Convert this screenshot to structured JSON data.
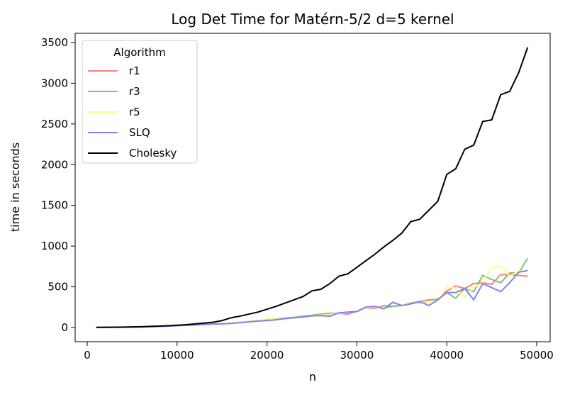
{
  "chart_data": {
    "type": "line",
    "title": "Log Det Time for Matérn-5/2 d=5 kernel",
    "xlabel": "n",
    "ylabel": "time in seconds",
    "legend_title": "Algorithm",
    "legend": "upper left",
    "x": [
      1000,
      2000,
      3000,
      4000,
      5000,
      6000,
      7000,
      8000,
      9000,
      10000,
      11000,
      12000,
      13000,
      14000,
      15000,
      16000,
      17000,
      18000,
      19000,
      20000,
      21000,
      22000,
      23000,
      24000,
      25000,
      26000,
      27000,
      28000,
      29000,
      30000,
      31000,
      32000,
      33000,
      34000,
      35000,
      36000,
      37000,
      38000,
      39000,
      40000,
      41000,
      42000,
      43000,
      44000,
      45000,
      46000,
      47000,
      48000,
      49000
    ],
    "series": [
      {
        "name": "r1",
        "color": "#f88080",
        "values": [
          0,
          1,
          2,
          3,
          5,
          7,
          10,
          14,
          18,
          22,
          27,
          32,
          38,
          44,
          50,
          55,
          65,
          75,
          85,
          95,
          100,
          110,
          120,
          130,
          140,
          150,
          160,
          175,
          165,
          200,
          240,
          235,
          270,
          260,
          275,
          300,
          320,
          340,
          345,
          450,
          510,
          480,
          540,
          550,
          530,
          650,
          650,
          640,
          630
        ]
      },
      {
        "name": "r3",
        "color": "#80c080",
        "values": [
          0,
          1,
          2,
          3,
          5,
          7,
          10,
          14,
          18,
          22,
          27,
          32,
          38,
          44,
          50,
          55,
          65,
          75,
          85,
          95,
          105,
          115,
          125,
          140,
          150,
          165,
          175,
          175,
          190,
          200,
          250,
          255,
          240,
          260,
          270,
          300,
          300,
          320,
          350,
          430,
          360,
          480,
          440,
          640,
          590,
          550,
          670,
          670,
          850
        ]
      },
      {
        "name": "r5",
        "color": "#ffff80",
        "values": [
          0,
          1,
          2,
          3,
          5,
          7,
          10,
          14,
          18,
          22,
          27,
          32,
          38,
          44,
          50,
          55,
          65,
          75,
          85,
          110,
          100,
          110,
          120,
          130,
          140,
          150,
          160,
          175,
          185,
          200,
          240,
          250,
          240,
          300,
          280,
          290,
          310,
          320,
          330,
          500,
          480,
          370,
          500,
          540,
          740,
          760,
          630,
          690,
          700
        ]
      },
      {
        "name": "SLQ",
        "color": "#8080f8",
        "values": [
          0,
          1,
          2,
          3,
          5,
          7,
          10,
          14,
          18,
          22,
          27,
          32,
          38,
          44,
          45,
          50,
          60,
          70,
          80,
          85,
          95,
          110,
          120,
          130,
          145,
          145,
          140,
          180,
          190,
          195,
          250,
          260,
          230,
          310,
          270,
          290,
          320,
          270,
          340,
          430,
          430,
          480,
          340,
          540,
          490,
          440,
          550,
          680,
          700
        ]
      },
      {
        "name": "Cholesky",
        "color": "#000000",
        "values": [
          2,
          3,
          4,
          6,
          8,
          10,
          14,
          18,
          22,
          28,
          35,
          45,
          55,
          65,
          85,
          120,
          140,
          165,
          190,
          225,
          260,
          300,
          340,
          380,
          450,
          470,
          540,
          630,
          660,
          740,
          820,
          900,
          990,
          1070,
          1160,
          1300,
          1330,
          1440,
          1550,
          1880,
          1950,
          2190,
          2240,
          2530,
          2550,
          2860,
          2900,
          3130,
          3440
        ]
      }
    ],
    "xlim": [
      -1340,
      51500
    ],
    "ylim": [
      -174,
      3613
    ],
    "xticks": [
      0,
      10000,
      20000,
      30000,
      40000,
      50000
    ],
    "yticks": [
      0,
      500,
      1000,
      1500,
      2000,
      2500,
      3000,
      3500
    ]
  }
}
